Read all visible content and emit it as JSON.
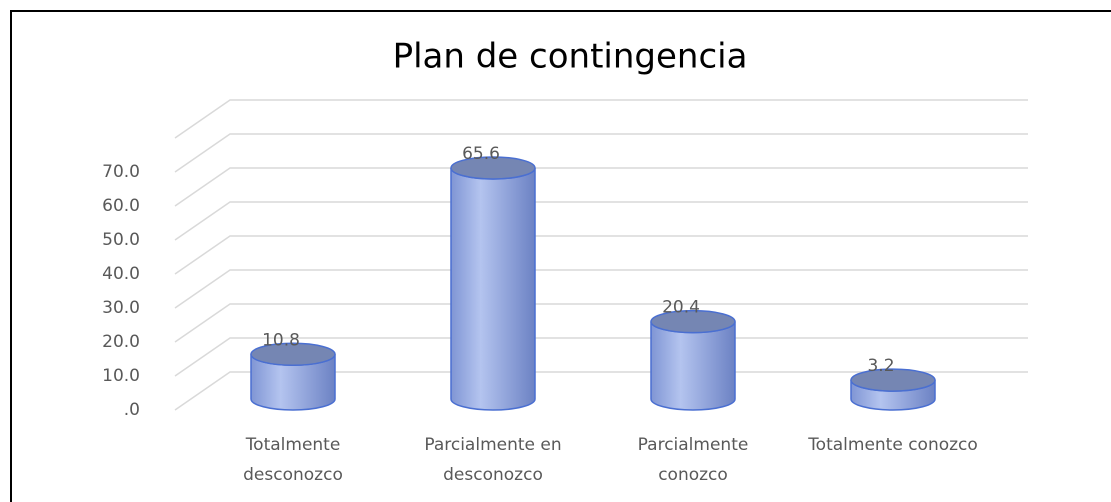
{
  "chart_data": {
    "type": "bar",
    "title": "Plan de contingencia",
    "categories": [
      "Totalmente desconozco",
      "Parcialmente en desconozco",
      "Parcialmente conozco",
      "Totalmente conozco"
    ],
    "values": [
      10.8,
      65.6,
      20.4,
      3.2
    ],
    "color": "#a9bbeb",
    "ylim": [
      0,
      80
    ],
    "yticks": [
      {
        "value": 0,
        "label": ".0"
      },
      {
        "value": 10,
        "label": "10.0"
      },
      {
        "value": 20,
        "label": "20.0"
      },
      {
        "value": 30,
        "label": "30.0"
      },
      {
        "value": 40,
        "label": "40.0"
      },
      {
        "value": 50,
        "label": "50.0"
      },
      {
        "value": 60,
        "label": "60.0"
      },
      {
        "value": 70,
        "label": "70.0"
      }
    ],
    "grid": true
  }
}
